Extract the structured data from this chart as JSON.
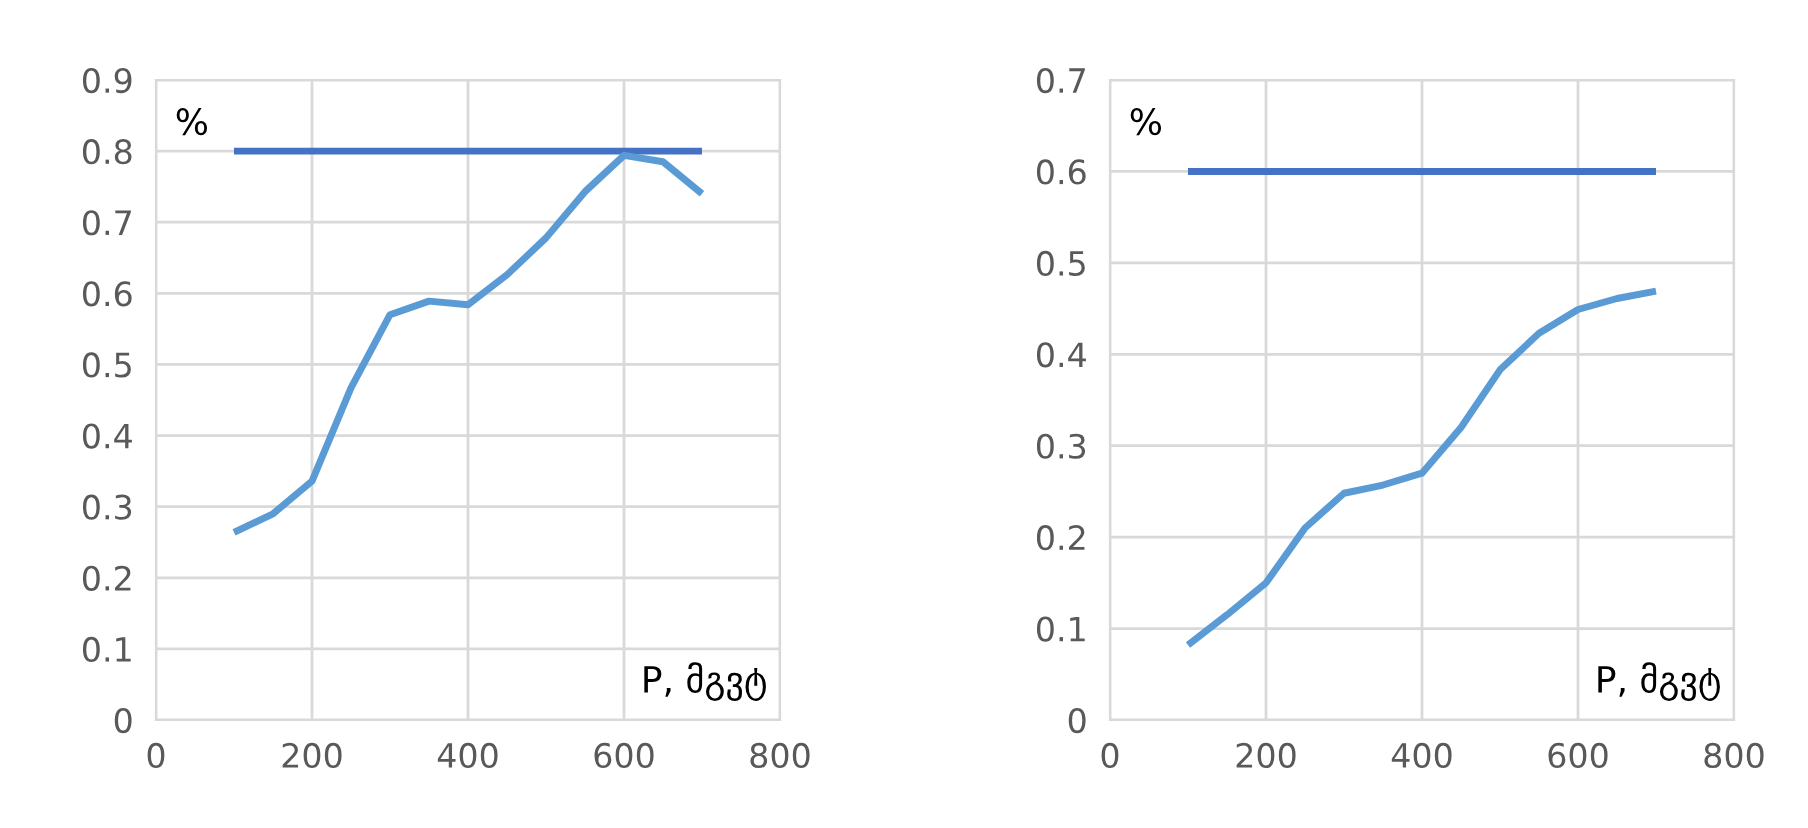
{
  "chart_data": [
    {
      "type": "line",
      "ylabel": "%",
      "xlabel": "P, მგვტ",
      "xlim": [
        0,
        800
      ],
      "xticks": [
        0,
        200,
        400,
        600,
        800
      ],
      "ylim": [
        0,
        0.9
      ],
      "yticks": [
        0,
        0.1,
        0.2,
        0.3,
        0.4,
        0.5,
        0.6,
        0.7,
        0.8,
        0.9
      ],
      "grid": true,
      "legend": false,
      "series": [
        {
          "color": "#4472c4",
          "x": [
            100,
            700
          ],
          "values": [
            0.8,
            0.8
          ]
        },
        {
          "color": "#5b9bd5",
          "x": [
            100,
            150,
            200,
            250,
            300,
            350,
            400,
            450,
            500,
            550,
            600,
            650,
            700
          ],
          "values": [
            0.264,
            0.29,
            0.336,
            0.467,
            0.57,
            0.589,
            0.584,
            0.626,
            0.678,
            0.743,
            0.794,
            0.785,
            0.74
          ]
        }
      ]
    },
    {
      "type": "line",
      "ylabel": "%",
      "xlabel": "P, მგვტ",
      "xlim": [
        0,
        800
      ],
      "xticks": [
        0,
        200,
        400,
        600,
        800
      ],
      "ylim": [
        0,
        0.7
      ],
      "yticks": [
        0,
        0.1,
        0.2,
        0.3,
        0.4,
        0.5,
        0.6,
        0.7
      ],
      "grid": true,
      "legend": false,
      "series": [
        {
          "color": "#4472c4",
          "x": [
            100,
            700
          ],
          "values": [
            0.6,
            0.6
          ]
        },
        {
          "color": "#5b9bd5",
          "x": [
            100,
            150,
            200,
            250,
            300,
            350,
            400,
            450,
            500,
            550,
            600,
            650,
            700
          ],
          "values": [
            0.082,
            0.115,
            0.15,
            0.21,
            0.248,
            0.257,
            0.27,
            0.32,
            0.383,
            0.423,
            0.449,
            0.461,
            0.469
          ]
        }
      ]
    }
  ]
}
